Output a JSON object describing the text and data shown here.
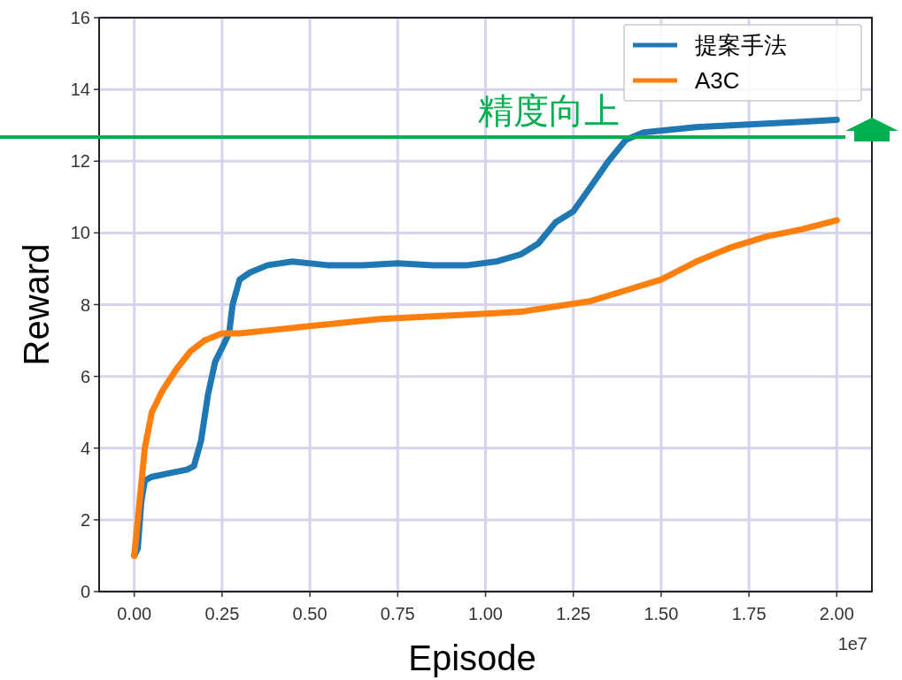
{
  "chart_data": {
    "type": "line",
    "xlabel": "Episode",
    "ylabel": "Reward",
    "xlim": [
      -0.1,
      2.1
    ],
    "ylim": [
      0,
      16
    ],
    "xticks": [
      {
        "value": 0,
        "label": "0.00"
      },
      {
        "value": 0.25,
        "label": "0.25"
      },
      {
        "value": 0.5,
        "label": "0.50"
      },
      {
        "value": 0.75,
        "label": "0.75"
      },
      {
        "value": 1,
        "label": "1.00"
      },
      {
        "value": 1.25,
        "label": "1.25"
      },
      {
        "value": 1.5,
        "label": "1.50"
      },
      {
        "value": 1.75,
        "label": "1.75"
      },
      {
        "value": 2,
        "label": "2.00"
      }
    ],
    "yticks": [
      0,
      2,
      4,
      6,
      8,
      10,
      12,
      14,
      16
    ],
    "grid": true,
    "legend": "top right",
    "annotations": [
      "1e7"
    ],
    "ref_lines": [
      {
        "axis": "y",
        "value": 12.67,
        "label": "精度向上",
        "color": "#00b050"
      }
    ],
    "series": [
      {
        "name": "提案手法",
        "color": "#1f77b4",
        "x": [
          0,
          0.01,
          0.02,
          0.03,
          0.05,
          0.1,
          0.15,
          0.17,
          0.19,
          0.21,
          0.23,
          0.25,
          0.27,
          0.28,
          0.3,
          0.33,
          0.38,
          0.45,
          0.55,
          0.65,
          0.75,
          0.85,
          0.95,
          1.03,
          1.1,
          1.15,
          1.2,
          1.25,
          1.3,
          1.35,
          1.4,
          1.45,
          1.5,
          1.6,
          1.7,
          1.8,
          1.9,
          2.0
        ],
        "values": [
          1.0,
          1.2,
          2.5,
          3.1,
          3.2,
          3.3,
          3.4,
          3.5,
          4.2,
          5.5,
          6.4,
          6.8,
          7.2,
          8.0,
          8.7,
          8.9,
          9.1,
          9.2,
          9.1,
          9.1,
          9.15,
          9.1,
          9.1,
          9.2,
          9.4,
          9.7,
          10.3,
          10.6,
          11.3,
          12.0,
          12.6,
          12.8,
          12.85,
          12.95,
          13.0,
          13.05,
          13.1,
          13.15
        ]
      },
      {
        "name": "A3C",
        "color": "#ff7f0e",
        "x": [
          0,
          0.02,
          0.03,
          0.05,
          0.08,
          0.12,
          0.16,
          0.2,
          0.25,
          0.3,
          0.4,
          0.5,
          0.6,
          0.7,
          0.8,
          0.9,
          1.0,
          1.1,
          1.2,
          1.3,
          1.4,
          1.5,
          1.6,
          1.7,
          1.8,
          1.9,
          2.0
        ],
        "values": [
          1.0,
          3.0,
          4.0,
          5.0,
          5.6,
          6.2,
          6.7,
          7.0,
          7.2,
          7.2,
          7.3,
          7.4,
          7.5,
          7.6,
          7.65,
          7.7,
          7.75,
          7.8,
          7.95,
          8.1,
          8.4,
          8.7,
          9.2,
          9.6,
          9.9,
          10.1,
          10.35
        ]
      }
    ]
  }
}
